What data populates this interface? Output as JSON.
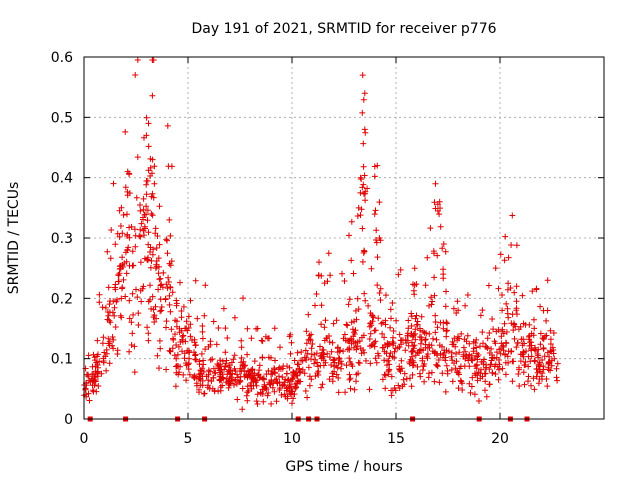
{
  "chart_data": {
    "type": "scatter",
    "title": "Day 191 of 2021, SRMTID for receiver p776",
    "xlabel": "GPS time / hours",
    "ylabel": "SRMTID / TECUs",
    "xlim": [
      0,
      25
    ],
    "ylim": [
      0,
      0.6
    ],
    "x_ticks": [
      0,
      5,
      10,
      15,
      20
    ],
    "x_tick_labels": [
      "0",
      "5",
      "10",
      "15",
      "20"
    ],
    "y_ticks": [
      0,
      0.1,
      0.2,
      0.3,
      0.4,
      0.5,
      0.6
    ],
    "y_tick_labels": [
      "0",
      "0.1",
      "0.2",
      "0.3",
      "0.4",
      "0.5",
      "0.6"
    ],
    "grid": true,
    "marker": "+",
    "color": "#e00000",
    "x_range_of_data": [
      0,
      22.8
    ],
    "baseline_marks_x": [
      0.3,
      2.0,
      4.5,
      5.8,
      10.3,
      10.8,
      11.2,
      15.8,
      19.0,
      20.5,
      21.3
    ],
    "envelope": [
      [
        0.0,
        0.05
      ],
      [
        0.5,
        0.08
      ],
      [
        1.0,
        0.1
      ],
      [
        1.3,
        0.16
      ],
      [
        1.7,
        0.22
      ],
      [
        2.0,
        0.25
      ],
      [
        2.3,
        0.22
      ],
      [
        2.6,
        0.25
      ],
      [
        3.0,
        0.3
      ],
      [
        3.3,
        0.26
      ],
      [
        3.6,
        0.22
      ],
      [
        4.0,
        0.2
      ],
      [
        4.5,
        0.14
      ],
      [
        5.0,
        0.1
      ],
      [
        6.0,
        0.08
      ],
      [
        7.0,
        0.07
      ],
      [
        8.0,
        0.065
      ],
      [
        9.0,
        0.06
      ],
      [
        10.0,
        0.06
      ],
      [
        10.5,
        0.09
      ],
      [
        11.0,
        0.1
      ],
      [
        12.0,
        0.1
      ],
      [
        13.0,
        0.12
      ],
      [
        13.5,
        0.15
      ],
      [
        14.0,
        0.14
      ],
      [
        14.5,
        0.11
      ],
      [
        15.0,
        0.1
      ],
      [
        16.0,
        0.12
      ],
      [
        17.0,
        0.12
      ],
      [
        18.0,
        0.1
      ],
      [
        19.0,
        0.09
      ],
      [
        20.0,
        0.11
      ],
      [
        20.5,
        0.14
      ],
      [
        21.0,
        0.1
      ],
      [
        22.0,
        0.1
      ],
      [
        22.8,
        0.09
      ]
    ],
    "peaks": [
      [
        1.8,
        0.35
      ],
      [
        2.1,
        0.41
      ],
      [
        3.0,
        0.47
      ],
      [
        3.1,
        0.49
      ],
      [
        3.3,
        0.43
      ],
      [
        4.1,
        0.33
      ],
      [
        13.3,
        0.4
      ],
      [
        13.4,
        0.57
      ],
      [
        13.5,
        0.54
      ],
      [
        13.5,
        0.48
      ],
      [
        14.1,
        0.42
      ],
      [
        14.2,
        0.3
      ],
      [
        16.9,
        0.39
      ],
      [
        17.1,
        0.36
      ],
      [
        17.3,
        0.29
      ],
      [
        15.9,
        0.25
      ],
      [
        11.3,
        0.26
      ],
      [
        20.8,
        0.22
      ],
      [
        20.1,
        0.18
      ]
    ],
    "point_count": 1400
  }
}
